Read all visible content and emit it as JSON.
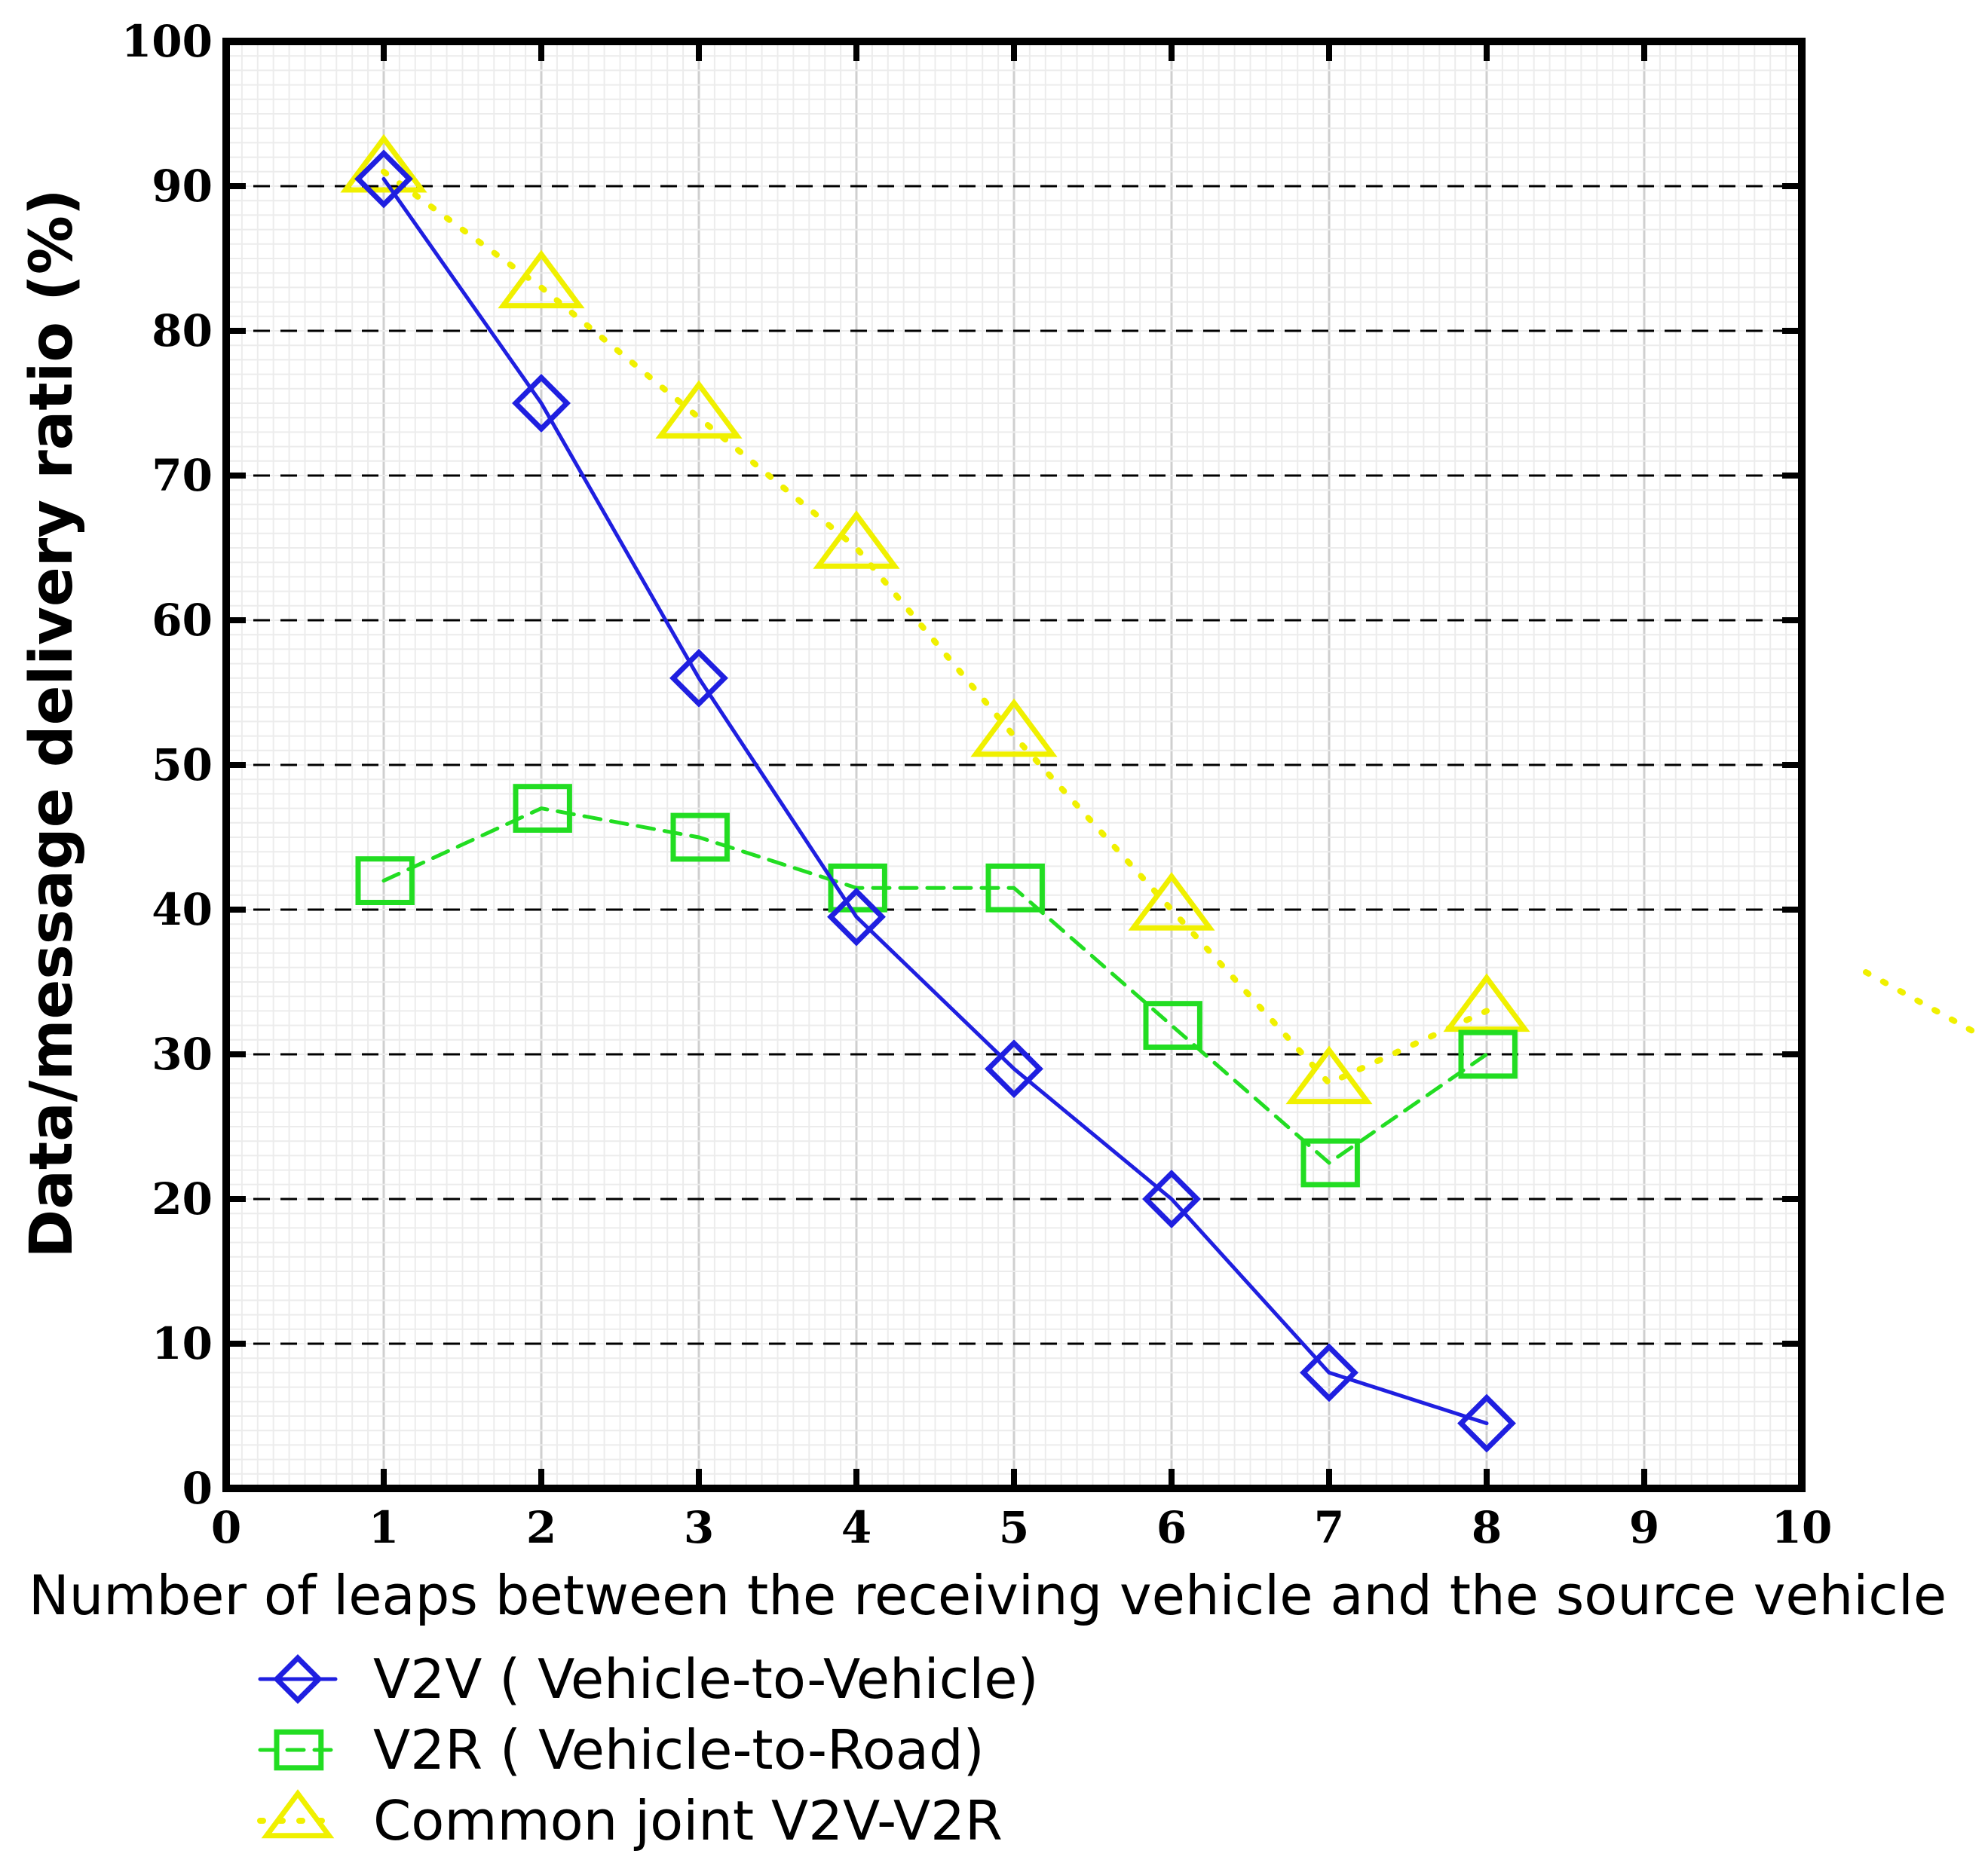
{
  "chart_data": {
    "type": "line",
    "title": "",
    "xlabel": "Number of leaps between the receiving vehicle and the source vehicle",
    "ylabel": "Data/message delivery ratio (%)",
    "xlim": [
      0,
      10
    ],
    "ylim": [
      0,
      100
    ],
    "xticks": [
      0,
      1,
      2,
      3,
      4,
      5,
      6,
      7,
      8,
      9,
      10
    ],
    "yticks": [
      0,
      10,
      20,
      30,
      40,
      50,
      60,
      70,
      80,
      90,
      100
    ],
    "grid": true,
    "legend_position": "bottom-left",
    "series": [
      {
        "name": "V2V ( Vehicle-to-Vehicle)",
        "color": "#1f1fe0",
        "line_style": "solid",
        "marker": "diamond",
        "x": [
          1,
          2,
          3,
          4,
          5,
          6,
          7,
          8
        ],
        "y": [
          90.5,
          75,
          56,
          39.5,
          29,
          20,
          8,
          4.5
        ]
      },
      {
        "name": "V2R ( Vehicle-to-Road)",
        "color": "#22dd22",
        "line_style": "dashed",
        "marker": "square",
        "x": [
          1,
          2,
          3,
          4,
          5,
          6,
          7,
          8
        ],
        "y": [
          42,
          47,
          45,
          41.5,
          41.5,
          32,
          22.5,
          30
        ]
      },
      {
        "name": "Common joint V2V-V2R",
        "color": "#f0f000",
        "line_style": "dotted",
        "marker": "triangle",
        "x": [
          1,
          2,
          3,
          4,
          5,
          6,
          7,
          8
        ],
        "y": [
          91,
          83,
          74,
          65,
          52,
          40,
          28,
          33
        ]
      }
    ]
  }
}
